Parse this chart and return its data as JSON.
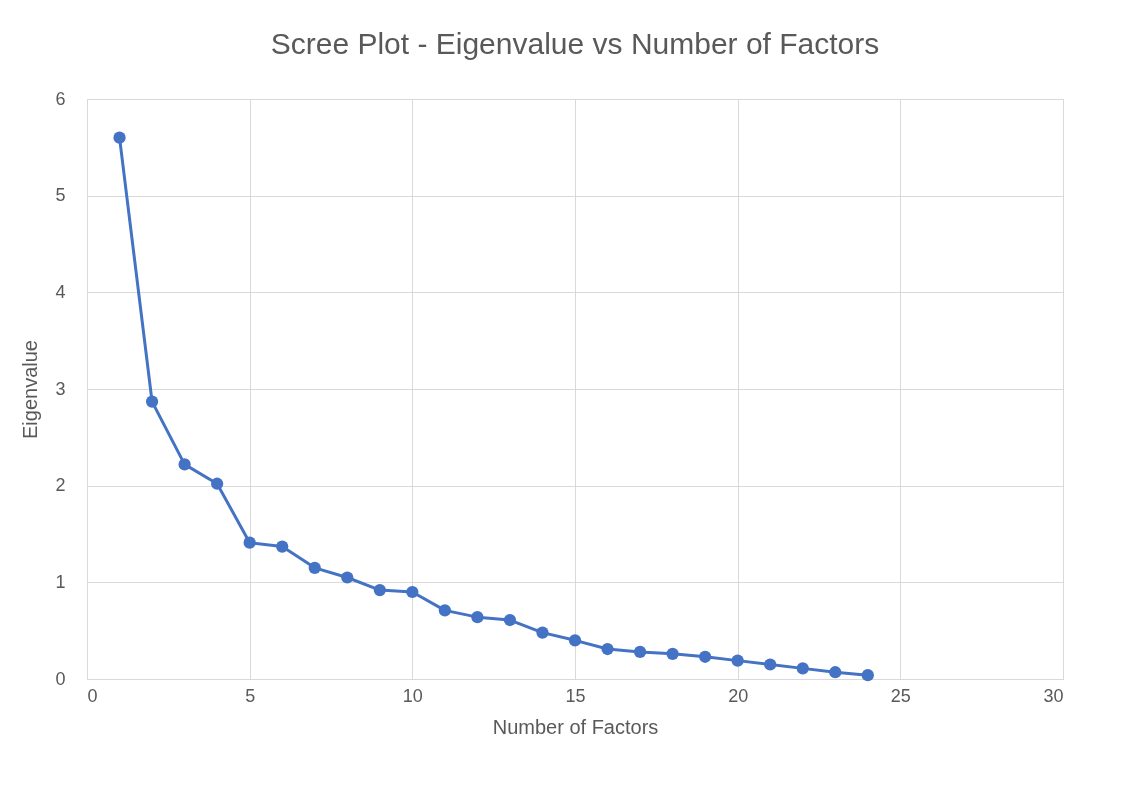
{
  "chart_data": {
    "type": "line",
    "title": "Scree Plot - Eigenvalue vs Number of Factors",
    "xlabel": "Number of Factors",
    "ylabel": "Eigenvalue",
    "x": [
      1,
      2,
      3,
      4,
      5,
      6,
      7,
      8,
      9,
      10,
      11,
      12,
      13,
      14,
      15,
      16,
      17,
      18,
      19,
      20,
      21,
      22,
      23,
      24
    ],
    "series": [
      {
        "color": "#4472c4",
        "values": [
          5.6,
          2.87,
          2.22,
          2.02,
          1.41,
          1.37,
          1.15,
          1.05,
          0.92,
          0.9,
          0.71,
          0.64,
          0.61,
          0.48,
          0.4,
          0.31,
          0.28,
          0.26,
          0.23,
          0.19,
          0.15,
          0.11,
          0.07,
          0.04
        ]
      }
    ],
    "xlim": [
      0,
      30
    ],
    "xticks": [
      0,
      5,
      10,
      15,
      20,
      25,
      30
    ],
    "ylim": [
      0,
      6
    ],
    "yticks": [
      0,
      1,
      2,
      3,
      4,
      5,
      6
    ],
    "grid": true,
    "marker": "circle",
    "line_style": "solid"
  }
}
